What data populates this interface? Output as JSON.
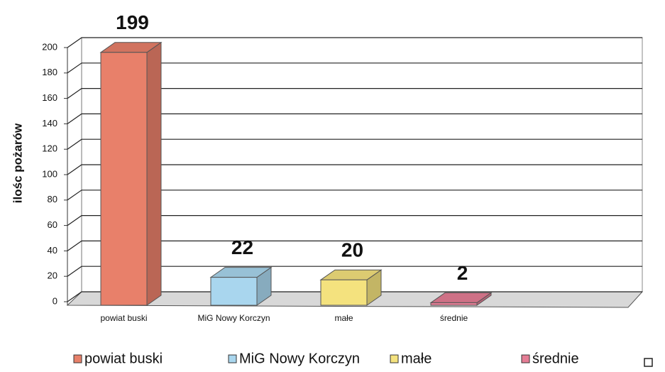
{
  "chart_data": {
    "type": "bar3d",
    "y_label": "ilośc pożarów",
    "categories": [
      "powiat buski",
      "MiG Nowy Korczyn",
      "małe",
      "średnie"
    ],
    "values": [
      199,
      22,
      20,
      2
    ],
    "colors": [
      "#e8806a",
      "#a9d6ee",
      "#f4e27e",
      "#e57d95"
    ],
    "ylim": [
      0,
      200
    ],
    "yticks": [
      0,
      20,
      40,
      60,
      80,
      100,
      120,
      140,
      160,
      180,
      200
    ],
    "grid": true,
    "legend": "bottom"
  }
}
